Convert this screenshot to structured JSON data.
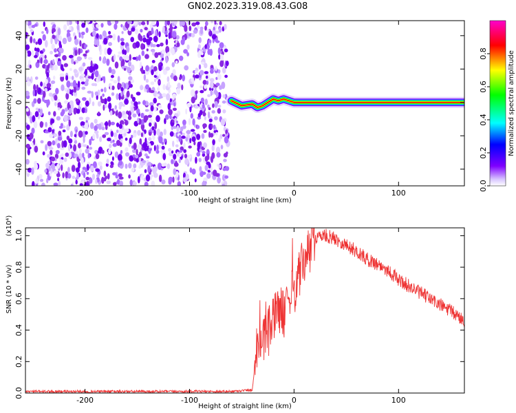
{
  "title": "GN02.2023.319.08.43.G08",
  "chart_data": [
    {
      "type": "heatmap",
      "xlabel": "Height of straight line (km)",
      "ylabel": "Frequency (Hz)",
      "xlim": [
        -257,
        163
      ],
      "ylim": [
        -50,
        49
      ],
      "x_ticks": [
        -200,
        -100,
        0,
        100
      ],
      "y_ticks": [
        -40,
        -20,
        0,
        20,
        40
      ],
      "colorbar": {
        "label": "Normalized spectral amplitude",
        "range": [
          0.0,
          1.0
        ],
        "ticks": [
          0.0,
          0.2,
          0.4,
          0.6,
          0.8
        ],
        "colors": [
          "#ffffff",
          "#7f00ff",
          "#0000ff",
          "#00ffff",
          "#00ff00",
          "#ffff00",
          "#ff0000",
          "#ff00cc"
        ]
      },
      "regions": [
        {
          "description": "scattered noise",
          "x_range": [
            -257,
            -63
          ],
          "y_range": [
            -50,
            49
          ],
          "amplitude": 0.15
        },
        {
          "description": "narrow signal band",
          "x_range": [
            -63,
            163
          ],
          "center_frequency": [
            [
              -60,
              1
            ],
            [
              -50,
              -2
            ],
            [
              -40,
              -1
            ],
            [
              -35,
              -3
            ],
            [
              -30,
              -2
            ],
            [
              -20,
              2
            ],
            [
              -15,
              1
            ],
            [
              -10,
              2
            ],
            [
              0,
              0
            ],
            [
              50,
              0
            ],
            [
              163,
              0
            ]
          ],
          "amplitude": 0.9
        }
      ]
    },
    {
      "type": "line",
      "xlabel": "Height of straight line (km)",
      "ylabel": "SNR (10 * v/v)",
      "y_multiplier": "(x10⁴)",
      "xlim": [
        -257,
        163
      ],
      "ylim": [
        0.0,
        1.05
      ],
      "x_ticks": [
        -200,
        -100,
        0,
        100
      ],
      "y_ticks": [
        0.0,
        0.2,
        0.4,
        0.6,
        0.8,
        1.0
      ],
      "series": [
        {
          "color": "#ee3333",
          "x": [
            -257,
            -200,
            -150,
            -100,
            -60,
            -40,
            -37,
            -35,
            -30,
            -25,
            -20,
            -15,
            -10,
            -5,
            0,
            5,
            10,
            15,
            20,
            25,
            30,
            35,
            40,
            50,
            60,
            70,
            80,
            90,
            100,
            110,
            120,
            130,
            140,
            150,
            163
          ],
          "y": [
            0.01,
            0.01,
            0.01,
            0.01,
            0.01,
            0.02,
            0.2,
            0.35,
            0.3,
            0.4,
            0.45,
            0.55,
            0.5,
            0.6,
            0.65,
            0.75,
            0.85,
            0.9,
            0.98,
            1.0,
            1.0,
            0.99,
            0.98,
            0.94,
            0.9,
            0.85,
            0.82,
            0.78,
            0.72,
            0.68,
            0.64,
            0.6,
            0.56,
            0.52,
            0.46
          ]
        }
      ]
    }
  ]
}
